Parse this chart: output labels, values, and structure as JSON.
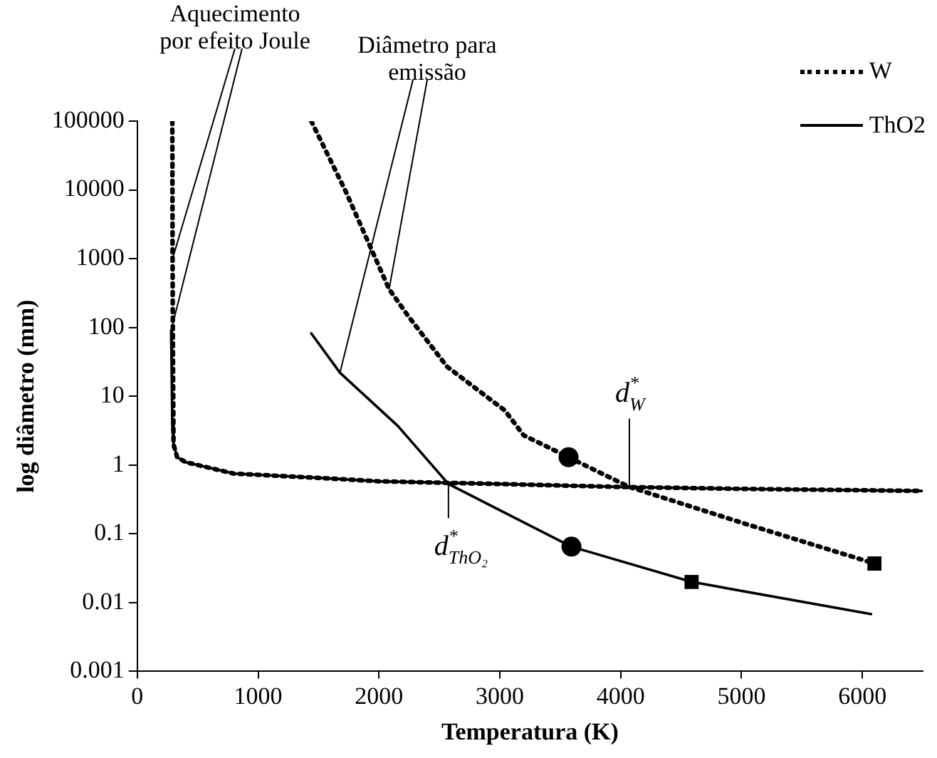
{
  "chart_data": {
    "type": "line",
    "xlabel": "Temperatura (K)",
    "ylabel": "log diâmetro (mm)",
    "log": "y",
    "grid": false,
    "legend": "top right",
    "xlim": [
      0,
      6500
    ],
    "xticks": [
      0,
      1000,
      2000,
      3000,
      4000,
      5000,
      6000
    ],
    "ylim": [
      0.001,
      100000
    ],
    "yticks": [
      0.001,
      0.01,
      0.1,
      1,
      10,
      100,
      1000,
      10000,
      100000
    ],
    "series": [
      {
        "name": "W",
        "color": "#000000",
        "line_style": "dotted",
        "marker": "none",
        "x": [
          290,
          292,
          295,
          300,
          330,
          400,
          500,
          800,
          1500,
          2000,
          3000,
          4000,
          5000,
          6500
        ],
        "values": [
          100000,
          1000,
          50,
          2,
          1.3,
          1.1,
          1.0,
          0.75,
          0.65,
          0.58,
          0.53,
          0.48,
          0.45,
          0.42
        ]
      },
      {
        "color": "#000000",
        "line_style": "dotted",
        "marker": "none",
        "x": [
          1440,
          1725,
          2084,
          2240,
          2563,
          3042,
          3198,
          4072,
          5030,
          6100
        ],
        "values": [
          100000,
          9500,
          360,
          148,
          27,
          6.2,
          2.7,
          0.48,
          0.14,
          0.037
        ]
      },
      {
        "name": "ThO2",
        "color": "#000000",
        "line_style": "solid",
        "marker": "none",
        "x": [
          280,
          285,
          290,
          300,
          330,
          400,
          500,
          800,
          1500,
          2000,
          3000,
          4000,
          5000,
          6500
        ],
        "values": [
          90,
          20,
          3.7,
          2,
          1.3,
          1.1,
          1.0,
          0.75,
          0.65,
          0.58,
          0.53,
          0.48,
          0.45,
          0.42
        ]
      },
      {
        "color": "#000000",
        "line_style": "solid",
        "marker": "none",
        "x": [
          1440,
          1677,
          2156,
          2575,
          3593,
          4587,
          6072
        ],
        "values": [
          82,
          22,
          3.7,
          0.53,
          0.065,
          0.02,
          0.0068
        ]
      },
      {
        "type": "scatter",
        "color": "#000000",
        "marker": "circle",
        "x": [
          3569,
          3593
        ],
        "values": [
          1.3,
          0.065
        ]
      },
      {
        "type": "scatter",
        "color": "#000000",
        "marker": "square",
        "x": [
          4587,
          6100
        ],
        "values": [
          0.02,
          0.037
        ]
      }
    ],
    "annotations": [
      {
        "text": "Aquecimento\npor efeito Joule",
        "x": 292,
        "y": 1000
      },
      {
        "text": "Diâmetro para\nemissão",
        "x": 2084,
        "y": 360
      },
      {
        "text": "d$^{*}$$_{W}$",
        "x": 4072,
        "y": 0.48
      },
      {
        "text": "d$^{*}$$_{ThO₂}$",
        "x": 2575,
        "y": 0.53
      }
    ]
  }
}
